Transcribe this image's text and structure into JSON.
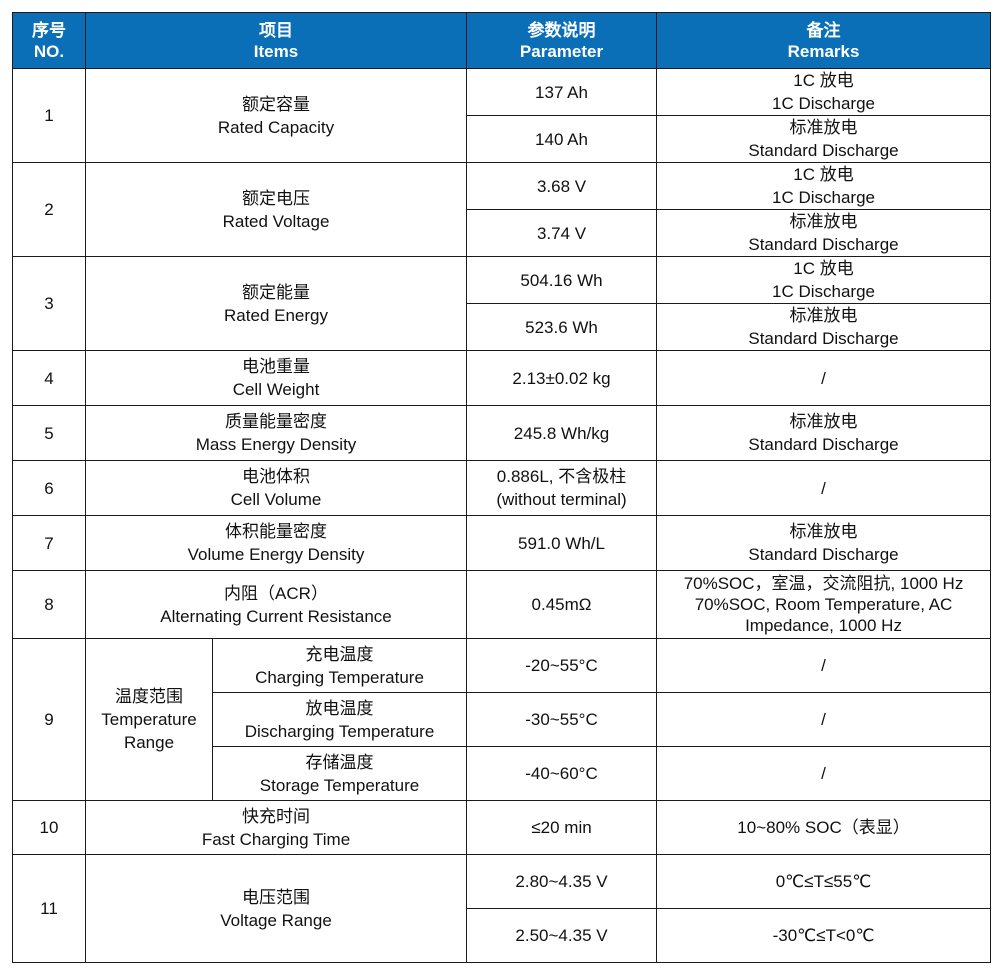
{
  "header": {
    "no_zh": "序号",
    "no_en": "NO.",
    "items_zh": "项目",
    "items_en": "Items",
    "param_zh": "参数说明",
    "param_en": "Parameter",
    "remarks_zh": "备注",
    "remarks_en": "Remarks"
  },
  "rows": {
    "r1": {
      "no": "1",
      "item_zh": "额定容量",
      "item_en": "Rated Capacity",
      "p1": "137 Ah",
      "rem1_zh": "1C 放电",
      "rem1_en": "1C Discharge",
      "p2": "140 Ah",
      "rem2_zh": "标准放电",
      "rem2_en": "Standard Discharge"
    },
    "r2": {
      "no": "2",
      "item_zh": "额定电压",
      "item_en": "Rated Voltage",
      "p1": "3.68 V",
      "rem1_zh": "1C 放电",
      "rem1_en": "1C Discharge",
      "p2": "3.74 V",
      "rem2_zh": "标准放电",
      "rem2_en": "Standard Discharge"
    },
    "r3": {
      "no": "3",
      "item_zh": "额定能量",
      "item_en": "Rated Energy",
      "p1": "504.16 Wh",
      "rem1_zh": "1C 放电",
      "rem1_en": "1C Discharge",
      "p2": "523.6 Wh",
      "rem2_zh": "标准放电",
      "rem2_en": "Standard Discharge"
    },
    "r4": {
      "no": "4",
      "item_zh": "电池重量",
      "item_en": "Cell Weight",
      "p": "2.13±0.02 kg",
      "rem": "/"
    },
    "r5": {
      "no": "5",
      "item_zh": "质量能量密度",
      "item_en": "Mass Energy Density",
      "p": "245.8 Wh/kg",
      "rem_zh": "标准放电",
      "rem_en": "Standard Discharge"
    },
    "r6": {
      "no": "6",
      "item_zh": "电池体积",
      "item_en": "Cell Volume",
      "p_line1": "0.886L, 不含极柱",
      "p_line2": "(without terminal)",
      "rem": "/"
    },
    "r7": {
      "no": "7",
      "item_zh": "体积能量密度",
      "item_en": "Volume Energy Density",
      "p": "591.0 Wh/L",
      "rem_zh": "标准放电",
      "rem_en": "Standard Discharge"
    },
    "r8": {
      "no": "8",
      "item_zh": "内阻（ACR）",
      "item_en": "Alternating Current Resistance",
      "p": "0.45mΩ",
      "rem_line1": "70%SOC，室温，交流阻抗, 1000 Hz",
      "rem_line2": "70%SOC, Room Temperature, AC",
      "rem_line3": "Impedance, 1000 Hz"
    },
    "r9": {
      "no": "9",
      "item_zh": "温度范围",
      "item_en_1": "Temperature",
      "item_en_2": "Range",
      "sub1_zh": "充电温度",
      "sub1_en": "Charging Temperature",
      "p1": "-20~55°C",
      "rem1": "/",
      "sub2_zh": "放电温度",
      "sub2_en": "Discharging Temperature",
      "p2": "-30~55°C",
      "rem2": "/",
      "sub3_zh": "存储温度",
      "sub3_en": "Storage Temperature",
      "p3": "-40~60°C",
      "rem3": "/"
    },
    "r10": {
      "no": "10",
      "item_zh": "快充时间",
      "item_en": "Fast Charging Time",
      "p": "≤20 min",
      "rem": "10~80% SOC（表显）"
    },
    "r11": {
      "no": "11",
      "item_zh": "电压范围",
      "item_en": "Voltage Range",
      "p1": "2.80~4.35 V",
      "rem1": "0℃≤T≤55℃",
      "p2": "2.50~4.35 V",
      "rem2": "-30℃≤T<0℃"
    }
  }
}
